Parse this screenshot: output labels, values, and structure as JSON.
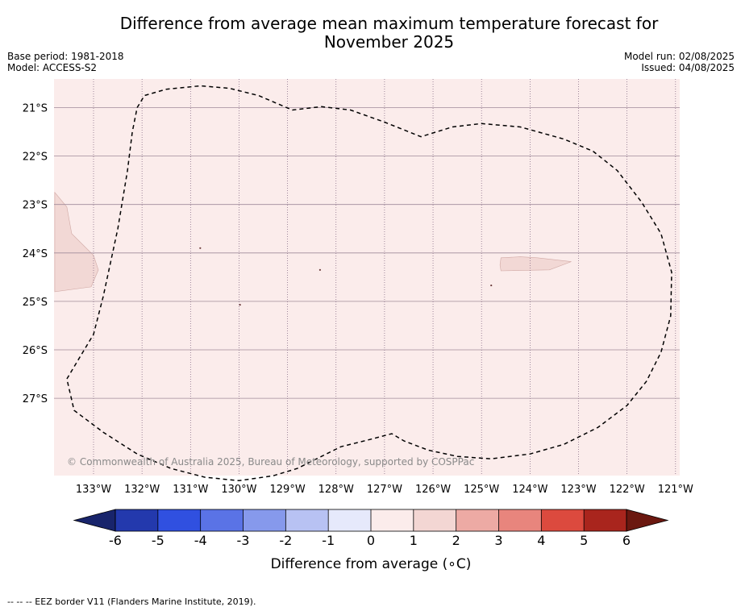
{
  "title_line1": "Difference from average mean maximum temperature forecast for",
  "title_line2": "November 2025",
  "meta_left": {
    "base_period": "Base period: 1981-2018",
    "model": "Model: ACCESS-S2"
  },
  "meta_right": {
    "model_run": "Model run: 02/08/2025",
    "issued": "Issued: 04/08/2025"
  },
  "copyright": "© Commonwealth of Australia 2025, Bureau of Meteorology, supported by COSPPac",
  "footnote": "--  --  -- EEZ border V11 (Flanders Marine Institute, 2019).",
  "map": {
    "lon_range": [
      -133.8,
      -120.9
    ],
    "lat_range": [
      -29.0,
      -20.7
    ],
    "lon_ticks": [
      {
        "v": -133,
        "label": "133°W"
      },
      {
        "v": -132,
        "label": "132°W"
      },
      {
        "v": -131,
        "label": "131°W"
      },
      {
        "v": -130,
        "label": "130°W"
      },
      {
        "v": -129,
        "label": "129°W"
      },
      {
        "v": -128,
        "label": "128°W"
      },
      {
        "v": -127,
        "label": "127°W"
      },
      {
        "v": -126,
        "label": "126°W"
      },
      {
        "v": -125,
        "label": "125°W"
      },
      {
        "v": -124,
        "label": "124°W"
      },
      {
        "v": -123,
        "label": "123°W"
      },
      {
        "v": -122,
        "label": "122°W"
      },
      {
        "v": -121,
        "label": "121°W"
      }
    ],
    "lat_ticks": [
      {
        "v": -21,
        "label": "21°S"
      },
      {
        "v": -22,
        "label": "22°S"
      },
      {
        "v": -23,
        "label": "23°S"
      },
      {
        "v": -24,
        "label": "24°S"
      },
      {
        "v": -25,
        "label": "25°S"
      },
      {
        "v": -26,
        "label": "26°S"
      },
      {
        "v": -27,
        "label": "27°S"
      }
    ],
    "background_color": "#fbeceb",
    "patch_color": "#f2d8d5",
    "patches": [
      [
        [
          -133.8,
          -22.75
        ],
        [
          -133.55,
          -23.05
        ],
        [
          -133.45,
          -23.6
        ],
        [
          -133.0,
          -24.05
        ],
        [
          -132.9,
          -24.35
        ],
        [
          -133.05,
          -24.7
        ],
        [
          -133.8,
          -24.8
        ]
      ],
      [
        [
          -124.6,
          -24.1
        ],
        [
          -124.2,
          -24.08
        ],
        [
          -123.85,
          -24.1
        ],
        [
          -123.15,
          -24.18
        ],
        [
          -123.6,
          -24.35
        ],
        [
          -124.6,
          -24.37
        ],
        [
          -124.62,
          -24.25
        ]
      ]
    ],
    "specks": [
      [
        -130.8,
        -23.9
      ],
      [
        -128.33,
        -24.35
      ],
      [
        -124.8,
        -24.67
      ],
      [
        -129.98,
        -25.07
      ]
    ],
    "eez_border": [
      [
        -132.1,
        -21.0
      ],
      [
        -131.95,
        -20.75
      ],
      [
        -131.5,
        -20.62
      ],
      [
        -130.8,
        -20.55
      ],
      [
        -130.2,
        -20.6
      ],
      [
        -129.6,
        -20.75
      ],
      [
        -128.9,
        -21.05
      ],
      [
        -128.3,
        -20.98
      ],
      [
        -127.7,
        -21.05
      ],
      [
        -127.0,
        -21.3
      ],
      [
        -126.25,
        -21.6
      ],
      [
        -125.6,
        -21.4
      ],
      [
        -125.0,
        -21.33
      ],
      [
        -124.2,
        -21.4
      ],
      [
        -123.3,
        -21.65
      ],
      [
        -122.7,
        -21.9
      ],
      [
        -122.2,
        -22.3
      ],
      [
        -121.7,
        -22.95
      ],
      [
        -121.3,
        -23.6
      ],
      [
        -121.08,
        -24.4
      ],
      [
        -121.1,
        -25.3
      ],
      [
        -121.3,
        -26.05
      ],
      [
        -121.6,
        -26.65
      ],
      [
        -122.0,
        -27.15
      ],
      [
        -122.6,
        -27.6
      ],
      [
        -123.3,
        -27.95
      ],
      [
        -124.0,
        -28.15
      ],
      [
        -124.8,
        -28.25
      ],
      [
        -125.5,
        -28.2
      ],
      [
        -126.1,
        -28.07
      ],
      [
        -126.6,
        -27.88
      ],
      [
        -126.85,
        -27.73
      ],
      [
        -127.3,
        -27.85
      ],
      [
        -127.9,
        -28.0
      ],
      [
        -128.3,
        -28.2
      ],
      [
        -128.8,
        -28.45
      ],
      [
        -129.3,
        -28.6
      ],
      [
        -130.0,
        -28.7
      ],
      [
        -130.7,
        -28.63
      ],
      [
        -131.4,
        -28.45
      ],
      [
        -132.1,
        -28.15
      ],
      [
        -132.8,
        -27.7
      ],
      [
        -133.4,
        -27.25
      ],
      [
        -133.55,
        -26.6
      ],
      [
        -133.3,
        -26.18
      ],
      [
        -133.0,
        -25.68
      ],
      [
        -132.8,
        -24.9
      ],
      [
        -132.5,
        -23.5
      ],
      [
        -132.3,
        -22.3
      ],
      [
        -132.2,
        -21.5
      ],
      [
        -132.1,
        -21.0
      ]
    ]
  },
  "colorbar": {
    "label": "Difference from average (∘C)",
    "ticks": [
      "-6",
      "-5",
      "-4",
      "-3",
      "-2",
      "-1",
      "0",
      "1",
      "2",
      "3",
      "4",
      "5",
      "6"
    ],
    "under_color": "#18246b",
    "over_color": "#6b1810",
    "colors": [
      "#2339ad",
      "#3050e0",
      "#5a73e6",
      "#8699ec",
      "#b8c2f3",
      "#e6e9fb",
      "#fbeceb",
      "#f3d6d3",
      "#edaaa4",
      "#e8857d",
      "#dc4a3e",
      "#a9251d"
    ]
  }
}
